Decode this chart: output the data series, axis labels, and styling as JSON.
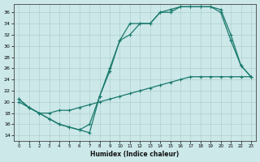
{
  "xlabel": "Humidex (Indice chaleur)",
  "bg_color": "#cce8e8",
  "line_color": "#1a7a6e",
  "grid_color": "#b0d0d0",
  "xlim": [
    -0.5,
    23.5
  ],
  "ylim": [
    13,
    37.5
  ],
  "yticks": [
    14,
    16,
    18,
    20,
    22,
    24,
    26,
    28,
    30,
    32,
    34,
    36
  ],
  "xticks": [
    0,
    1,
    2,
    3,
    4,
    5,
    6,
    7,
    8,
    9,
    10,
    11,
    12,
    13,
    14,
    15,
    16,
    17,
    18,
    19,
    20,
    21,
    22,
    23
  ],
  "curve1_x": [
    0,
    1,
    2,
    3,
    4,
    5,
    6,
    7,
    8,
    9,
    10,
    11,
    12,
    13,
    14,
    15,
    16,
    17,
    18,
    19,
    20,
    21,
    22,
    23
  ],
  "curve1_y": [
    20.5,
    19.0,
    18.0,
    17.0,
    16.0,
    15.5,
    15.0,
    14.5,
    21.0,
    26.0,
    31.0,
    34.0,
    34.0,
    34.0,
    36.0,
    36.0,
    37.0,
    37.0,
    37.0,
    37.0,
    36.5,
    32.0,
    26.5,
    24.5
  ],
  "curve2_x": [
    0,
    1,
    2,
    3,
    4,
    5,
    6,
    7,
    8,
    9,
    10,
    11,
    12,
    13,
    14,
    15,
    16,
    17,
    18,
    19,
    20,
    21,
    22,
    23
  ],
  "curve2_y": [
    20.5,
    19.0,
    18.0,
    17.0,
    16.0,
    15.5,
    15.0,
    16.0,
    21.0,
    25.5,
    31.0,
    32.0,
    34.0,
    34.0,
    36.0,
    36.5,
    37.0,
    37.0,
    37.0,
    37.0,
    36.0,
    31.0,
    26.5,
    24.5
  ],
  "curve3_x": [
    0,
    1,
    2,
    3,
    4,
    5,
    6,
    7,
    8,
    9,
    10,
    11,
    12,
    13,
    14,
    15,
    16,
    17,
    18,
    19,
    20,
    21,
    22,
    23
  ],
  "curve3_y": [
    20.0,
    19.0,
    18.0,
    18.0,
    18.5,
    18.5,
    19.0,
    19.5,
    20.0,
    20.5,
    21.0,
    21.5,
    22.0,
    22.5,
    23.0,
    23.5,
    24.0,
    24.5,
    24.5,
    24.5,
    24.5,
    24.5,
    24.5,
    24.5
  ]
}
